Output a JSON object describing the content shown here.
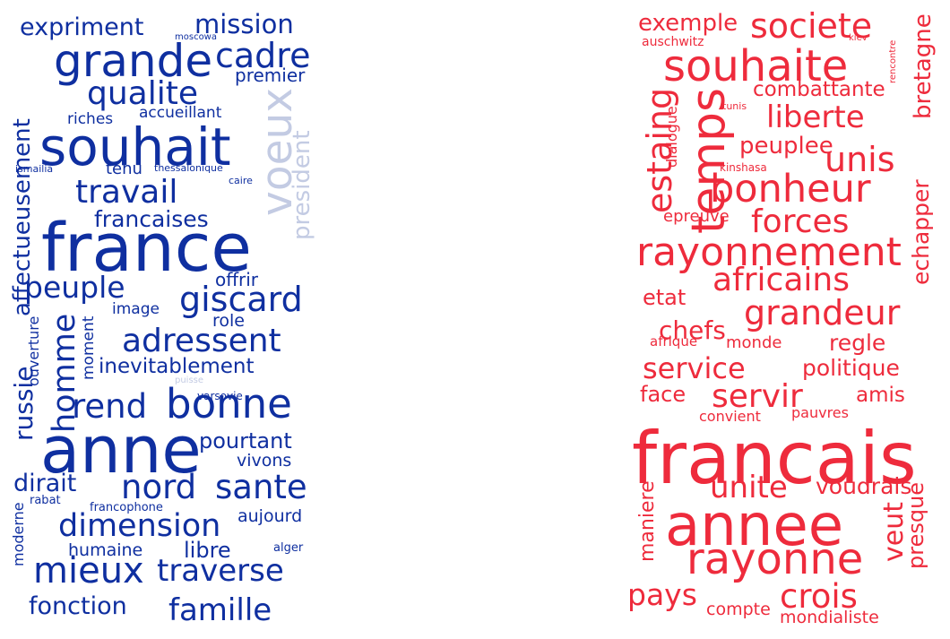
{
  "palette": {
    "blue": "#0f2fa0",
    "light": "#c3cbe3",
    "red": "#ee2b3c"
  },
  "left_words": [
    "expriment",
    "mission",
    "grande",
    "cadre",
    "premier",
    "moscowa",
    "qualite",
    "affectueusement",
    "riches",
    "accueillant",
    "souhait",
    "voeux",
    "president",
    "ismailia",
    "tenu",
    "thessalonique",
    "caire",
    "travail",
    "francaises",
    "france",
    "offrir",
    "peuple",
    "giscard",
    "image",
    "role",
    "ouverture",
    "homme",
    "moment",
    "adressent",
    "inevitablement",
    "rend",
    "bonne",
    "puisse",
    "russie",
    "varsovie",
    "anne",
    "pourtant",
    "vivons",
    "dirait",
    "nord",
    "sante",
    "rabat",
    "francophone",
    "aujourd",
    "dimension",
    "moderne",
    "humaine",
    "libre",
    "alger",
    "mieux",
    "traverse",
    "fonction",
    "famille"
  ],
  "right_words": [
    "exemple",
    "societe",
    "auschwitz",
    "kiev",
    "rencontre",
    "souhaite",
    "bretagne",
    "combattante",
    "tunis",
    "liberte",
    "temps",
    "estaing",
    "dialogue",
    "peuplee",
    "unis",
    "kinshasa",
    "bonheur",
    "echapper",
    "epreuve",
    "forces",
    "rayonnement",
    "africains",
    "etat",
    "grandeur",
    "chefs",
    "afrique",
    "monde",
    "regle",
    "service",
    "politique",
    "face",
    "servir",
    "amis",
    "convient",
    "pauvres",
    "francais",
    "unite",
    "voudrais",
    "maniere",
    "annee",
    "veut",
    "presque",
    "rayonne",
    "pays",
    "crois",
    "compte",
    "mondialiste"
  ]
}
